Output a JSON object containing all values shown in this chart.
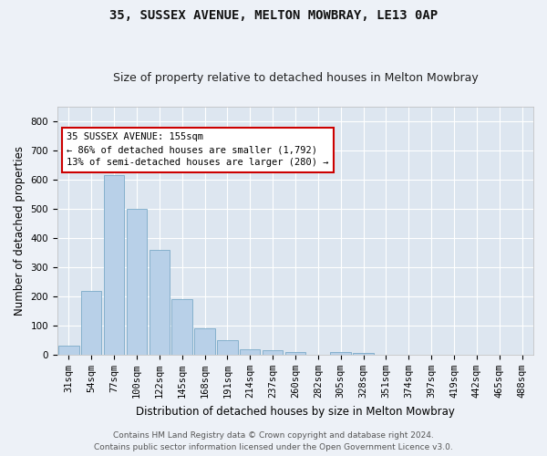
{
  "title": "35, SUSSEX AVENUE, MELTON MOWBRAY, LE13 0AP",
  "subtitle": "Size of property relative to detached houses in Melton Mowbray",
  "xlabel": "Distribution of detached houses by size in Melton Mowbray",
  "ylabel": "Number of detached properties",
  "categories": [
    "31sqm",
    "54sqm",
    "77sqm",
    "100sqm",
    "122sqm",
    "145sqm",
    "168sqm",
    "191sqm",
    "214sqm",
    "237sqm",
    "260sqm",
    "282sqm",
    "305sqm",
    "328sqm",
    "351sqm",
    "374sqm",
    "397sqm",
    "419sqm",
    "442sqm",
    "465sqm",
    "488sqm"
  ],
  "values": [
    30,
    220,
    615,
    500,
    360,
    190,
    90,
    50,
    20,
    15,
    8,
    0,
    8,
    5,
    0,
    0,
    0,
    0,
    0,
    0,
    0
  ],
  "bar_color": "#b8d0e8",
  "bar_edge_color": "#7aaac8",
  "background_color": "#dde6f0",
  "plot_bg_color": "#dde6f0",
  "fig_bg_color": "#edf1f7",
  "grid_color": "#ffffff",
  "ylim": [
    0,
    850
  ],
  "yticks": [
    0,
    100,
    200,
    300,
    400,
    500,
    600,
    700,
    800
  ],
  "annotation_text_line1": "35 SUSSEX AVENUE: 155sqm",
  "annotation_text_line2": "← 86% of detached houses are smaller (1,792)",
  "annotation_text_line3": "13% of semi-detached houses are larger (280) →",
  "annotation_box_color": "#ffffff",
  "annotation_border_color": "#cc0000",
  "footer_line1": "Contains HM Land Registry data © Crown copyright and database right 2024.",
  "footer_line2": "Contains public sector information licensed under the Open Government Licence v3.0.",
  "title_fontsize": 10,
  "subtitle_fontsize": 9,
  "axis_label_fontsize": 8.5,
  "tick_fontsize": 7.5,
  "annotation_fontsize": 7.5,
  "footer_fontsize": 6.5
}
